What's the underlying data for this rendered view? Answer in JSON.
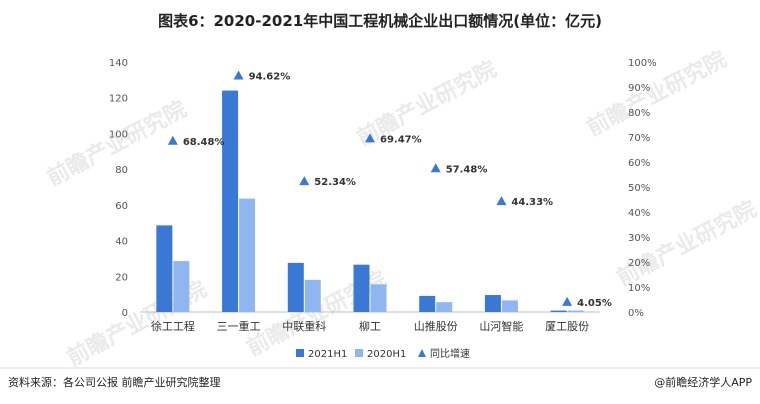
{
  "chart_data": {
    "type": "bar",
    "title": "图表6：2020-2021年中国工程机械企业出口额情况(单位：亿元)",
    "categories": [
      "徐工工程",
      "三一重工",
      "中联重科",
      "柳工",
      "山推股份",
      "山河智能",
      "厦工股份"
    ],
    "series": [
      {
        "name": "2021H1",
        "values": [
          48.5,
          124,
          27.5,
          26.5,
          9,
          9.5,
          0.8
        ],
        "color": "#3a78d6"
      },
      {
        "name": "2020H1",
        "values": [
          28.5,
          63.5,
          18,
          15.5,
          5.5,
          6.5,
          0.8
        ],
        "color": "#8fb6ef"
      }
    ],
    "growth": {
      "name": "同比增速",
      "values": [
        68.48,
        94.62,
        52.34,
        69.47,
        57.48,
        44.33,
        4.05
      ],
      "labels": [
        "68.48%",
        "94.62%",
        "52.34%",
        "69.47%",
        "57.48%",
        "44.33%",
        "4.05%"
      ],
      "color": "#3a78d6"
    },
    "y_left": {
      "min": 0,
      "max": 140,
      "ticks": [
        "0",
        "20",
        "40",
        "60",
        "80",
        "100",
        "120",
        "140"
      ]
    },
    "y_right": {
      "min": 0,
      "max": 100,
      "ticks": [
        "0%",
        "10%",
        "20%",
        "30%",
        "40%",
        "50%",
        "60%",
        "70%",
        "80%",
        "90%",
        "100%"
      ]
    },
    "legend": [
      "2021H1",
      "2020H1",
      "同比增速"
    ],
    "legend_position": "bottom"
  },
  "footer": {
    "source": "资料来源：各公司公报 前瞻产业研究院整理",
    "credit": "@前瞻经济学人APP"
  },
  "watermark": {
    "text": "前瞻产业研究院"
  }
}
